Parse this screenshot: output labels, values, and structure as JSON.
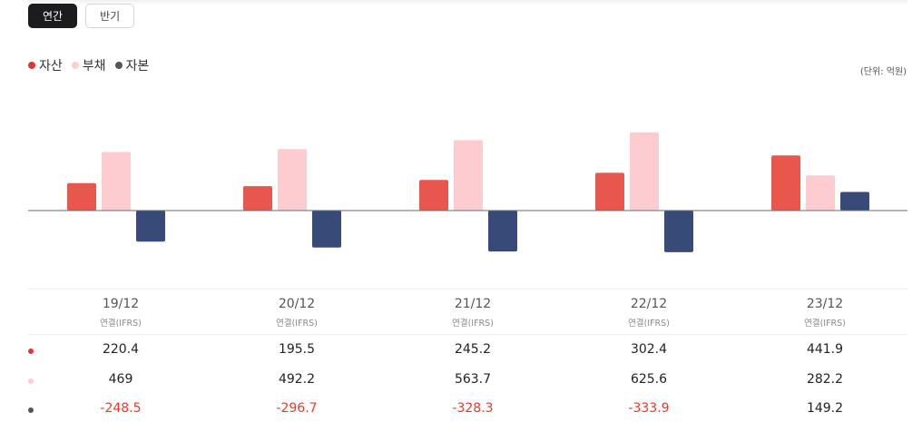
{
  "tabs": [
    {
      "label": "연간",
      "active": true
    },
    {
      "label": "반기",
      "active": false
    }
  ],
  "unit_label": "(단위: 억원)",
  "chart_data": {
    "type": "bar",
    "title": "",
    "categories": [
      "19/12",
      "20/12",
      "21/12",
      "22/12",
      "23/12"
    ],
    "category_sub": [
      "연결(IFRS)",
      "연결(IFRS)",
      "연결(IFRS)",
      "연결(IFRS)",
      "연결(IFRS)"
    ],
    "series": [
      {
        "name": "자산",
        "color": "#e8574d",
        "dot_color": "#d93a32",
        "values": [
          220.4,
          195.5,
          245.2,
          302.4,
          441.9
        ]
      },
      {
        "name": "부채",
        "color": "#fcccd0",
        "dot_color": "#fbcfd2",
        "values": [
          469,
          492.2,
          563.7,
          625.6,
          282.2
        ]
      },
      {
        "name": "자본",
        "color": "#374a78",
        "dot_color": "#555555",
        "values": [
          -248.5,
          -296.7,
          -328.3,
          -333.9,
          149.2
        ]
      }
    ],
    "table_values": [
      [
        "220.4",
        "195.5",
        "245.2",
        "302.4",
        "441.9"
      ],
      [
        "469",
        "492.2",
        "563.7",
        "625.6",
        "282.2"
      ],
      [
        "-248.5",
        "-296.7",
        "-328.3",
        "-333.9",
        "149.2"
      ]
    ],
    "negative_color": "#e03c31",
    "xlabel": "",
    "ylabel": "",
    "grid": false
  }
}
